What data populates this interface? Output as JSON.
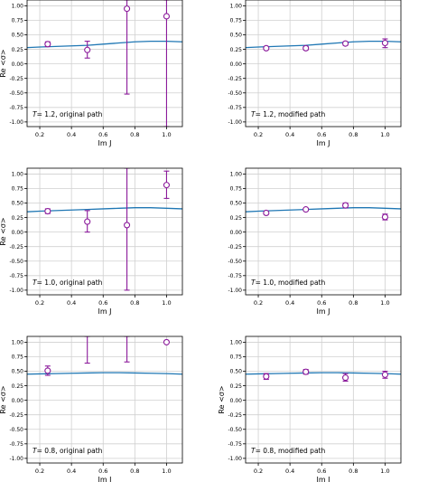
{
  "chart_data": [
    {
      "type": "scatter",
      "panel": "T=1.2, original path",
      "annotation": {
        "T_symbol": "T",
        "rest": "= 1.2, original path"
      },
      "xlabel": "Im J",
      "ylabel": "Re <σ>",
      "xlim": [
        0.12,
        1.1
      ],
      "ylim": [
        -1.08,
        1.1
      ],
      "xticks": [
        "0.2",
        "0.4",
        "0.6",
        "0.8",
        "1.0"
      ],
      "yticks": [
        "-1.00",
        "-0.75",
        "-0.50",
        "-0.25",
        "0.00",
        "0.25",
        "0.50",
        "0.75",
        "1.00"
      ],
      "grid": true,
      "curve": {
        "x": [
          0.12,
          0.2,
          0.3,
          0.4,
          0.5,
          0.6,
          0.7,
          0.8,
          0.9,
          1.0,
          1.1
        ],
        "y": [
          0.28,
          0.29,
          0.3,
          0.31,
          0.32,
          0.34,
          0.36,
          0.38,
          0.39,
          0.39,
          0.38
        ]
      },
      "points": [
        {
          "x": 0.25,
          "y": 0.34,
          "lo": 0.3,
          "hi": 0.38
        },
        {
          "x": 0.5,
          "y": 0.24,
          "lo": 0.1,
          "hi": 0.39
        },
        {
          "x": 0.75,
          "y": 0.95,
          "lo": -0.52,
          "hi": 1.1
        },
        {
          "x": 1.0,
          "y": 0.82,
          "lo": -1.08,
          "hi": 1.1
        }
      ]
    },
    {
      "type": "scatter",
      "panel": "T=1.2, modified path",
      "annotation": {
        "T_symbol": "T",
        "rest": "= 1.2, modified path"
      },
      "xlabel": "Im J",
      "ylabel": "",
      "xlim": [
        0.12,
        1.1
      ],
      "ylim": [
        -1.08,
        1.1
      ],
      "xticks": [
        "0.2",
        "0.4",
        "0.6",
        "0.8",
        "1.0"
      ],
      "yticks": [
        "-1.00",
        "-0.75",
        "-0.50",
        "-0.25",
        "0.00",
        "0.25",
        "0.50",
        "0.75",
        "1.00"
      ],
      "grid": true,
      "curve": {
        "x": [
          0.12,
          0.2,
          0.3,
          0.4,
          0.5,
          0.6,
          0.7,
          0.8,
          0.9,
          1.0,
          1.1
        ],
        "y": [
          0.28,
          0.29,
          0.3,
          0.31,
          0.32,
          0.34,
          0.36,
          0.38,
          0.39,
          0.39,
          0.38
        ]
      },
      "points": [
        {
          "x": 0.25,
          "y": 0.27,
          "lo": 0.25,
          "hi": 0.29
        },
        {
          "x": 0.5,
          "y": 0.27,
          "lo": 0.24,
          "hi": 0.3
        },
        {
          "x": 0.75,
          "y": 0.35,
          "lo": 0.32,
          "hi": 0.38
        },
        {
          "x": 1.0,
          "y": 0.36,
          "lo": 0.28,
          "hi": 0.43
        }
      ]
    },
    {
      "type": "scatter",
      "panel": "T=1.0, original path",
      "annotation": {
        "T_symbol": "T",
        "rest": "= 1.0, original path"
      },
      "xlabel": "Im J",
      "ylabel": "Re <σ>",
      "xlim": [
        0.12,
        1.1
      ],
      "ylim": [
        -1.08,
        1.1
      ],
      "xticks": [
        "0.2",
        "0.4",
        "0.6",
        "0.8",
        "1.0"
      ],
      "yticks": [
        "-1.00",
        "-0.75",
        "-0.50",
        "-0.25",
        "0.00",
        "0.25",
        "0.50",
        "0.75",
        "1.00"
      ],
      "grid": true,
      "curve": {
        "x": [
          0.12,
          0.2,
          0.3,
          0.4,
          0.5,
          0.6,
          0.7,
          0.8,
          0.9,
          1.0,
          1.1
        ],
        "y": [
          0.35,
          0.36,
          0.37,
          0.38,
          0.39,
          0.4,
          0.41,
          0.42,
          0.42,
          0.41,
          0.4
        ]
      },
      "points": [
        {
          "x": 0.25,
          "y": 0.36,
          "lo": 0.32,
          "hi": 0.4
        },
        {
          "x": 0.5,
          "y": 0.18,
          "lo": 0.0,
          "hi": 0.37
        },
        {
          "x": 0.75,
          "y": 0.12,
          "lo": -1.0,
          "hi": 1.1
        },
        {
          "x": 1.0,
          "y": 0.81,
          "lo": 0.58,
          "hi": 1.05
        }
      ]
    },
    {
      "type": "scatter",
      "panel": "T=1.0, modified path",
      "annotation": {
        "T_symbol": "T",
        "rest": "= 1.0, modified path"
      },
      "xlabel": "Im J",
      "ylabel": "",
      "xlim": [
        0.12,
        1.1
      ],
      "ylim": [
        -1.08,
        1.1
      ],
      "xticks": [
        "0.2",
        "0.4",
        "0.6",
        "0.8",
        "1.0"
      ],
      "yticks": [
        "-1.00",
        "-0.75",
        "-0.50",
        "-0.25",
        "0.00",
        "0.25",
        "0.50",
        "0.75",
        "1.00"
      ],
      "grid": true,
      "curve": {
        "x": [
          0.12,
          0.2,
          0.3,
          0.4,
          0.5,
          0.6,
          0.7,
          0.8,
          0.9,
          1.0,
          1.1
        ],
        "y": [
          0.35,
          0.36,
          0.37,
          0.38,
          0.39,
          0.4,
          0.41,
          0.42,
          0.42,
          0.41,
          0.4
        ]
      },
      "points": [
        {
          "x": 0.25,
          "y": 0.33,
          "lo": 0.31,
          "hi": 0.35
        },
        {
          "x": 0.5,
          "y": 0.39,
          "lo": 0.37,
          "hi": 0.41
        },
        {
          "x": 0.75,
          "y": 0.46,
          "lo": 0.42,
          "hi": 0.5
        },
        {
          "x": 1.0,
          "y": 0.26,
          "lo": 0.21,
          "hi": 0.31
        }
      ]
    },
    {
      "type": "scatter",
      "panel": "T=0.8, original path",
      "annotation": {
        "T_symbol": "T",
        "rest": "= 0.8, original path"
      },
      "xlabel": "Im J",
      "ylabel": "Re <σ>",
      "xlim": [
        0.12,
        1.1
      ],
      "ylim": [
        -1.08,
        1.1
      ],
      "xticks": [
        "0.2",
        "0.4",
        "0.6",
        "0.8",
        "1.0"
      ],
      "yticks": [
        "-1.00",
        "-0.75",
        "-0.50",
        "-0.25",
        "0.00",
        "0.25",
        "0.50",
        "0.75",
        "1.00"
      ],
      "grid": true,
      "curve": {
        "x": [
          0.12,
          0.2,
          0.3,
          0.4,
          0.5,
          0.6,
          0.7,
          0.8,
          0.9,
          1.0,
          1.1
        ],
        "y": [
          0.45,
          0.455,
          0.46,
          0.465,
          0.47,
          0.475,
          0.475,
          0.47,
          0.465,
          0.46,
          0.45
        ]
      },
      "points": [
        {
          "x": 0.25,
          "y": 0.51,
          "lo": 0.43,
          "hi": 0.59
        },
        {
          "x": 0.5,
          "y": 1.2,
          "lo": 0.64,
          "hi": 1.1
        },
        {
          "x": 0.75,
          "y": 1.2,
          "lo": 0.66,
          "hi": 1.1
        },
        {
          "x": 1.0,
          "y": 1.0,
          "lo": 1.0,
          "hi": 1.0
        }
      ]
    },
    {
      "type": "scatter",
      "panel": "T=0.8, modified path",
      "annotation": {
        "T_symbol": "T",
        "rest": "= 0.8, modified path"
      },
      "xlabel": "Im J",
      "ylabel": "Re <σ>",
      "xlim": [
        0.12,
        1.1
      ],
      "ylim": [
        -1.08,
        1.1
      ],
      "xticks": [
        "0.2",
        "0.4",
        "0.6",
        "0.8",
        "1.0"
      ],
      "yticks": [
        "-1.00",
        "-0.75",
        "-0.50",
        "-0.25",
        "0.00",
        "0.25",
        "0.50",
        "0.75",
        "1.00"
      ],
      "grid": true,
      "curve": {
        "x": [
          0.12,
          0.2,
          0.3,
          0.4,
          0.5,
          0.6,
          0.7,
          0.8,
          0.9,
          1.0,
          1.1
        ],
        "y": [
          0.45,
          0.455,
          0.46,
          0.465,
          0.47,
          0.475,
          0.475,
          0.47,
          0.465,
          0.46,
          0.45
        ]
      },
      "points": [
        {
          "x": 0.25,
          "y": 0.41,
          "lo": 0.36,
          "hi": 0.46
        },
        {
          "x": 0.5,
          "y": 0.49,
          "lo": 0.45,
          "hi": 0.53
        },
        {
          "x": 0.75,
          "y": 0.39,
          "lo": 0.33,
          "hi": 0.46
        },
        {
          "x": 1.0,
          "y": 0.44,
          "lo": 0.38,
          "hi": 0.5
        }
      ]
    }
  ],
  "colors": {
    "curve": "#1f77b4",
    "points": "#8b1a9b",
    "grid": "#d0d0d0",
    "axes": "#000000"
  }
}
